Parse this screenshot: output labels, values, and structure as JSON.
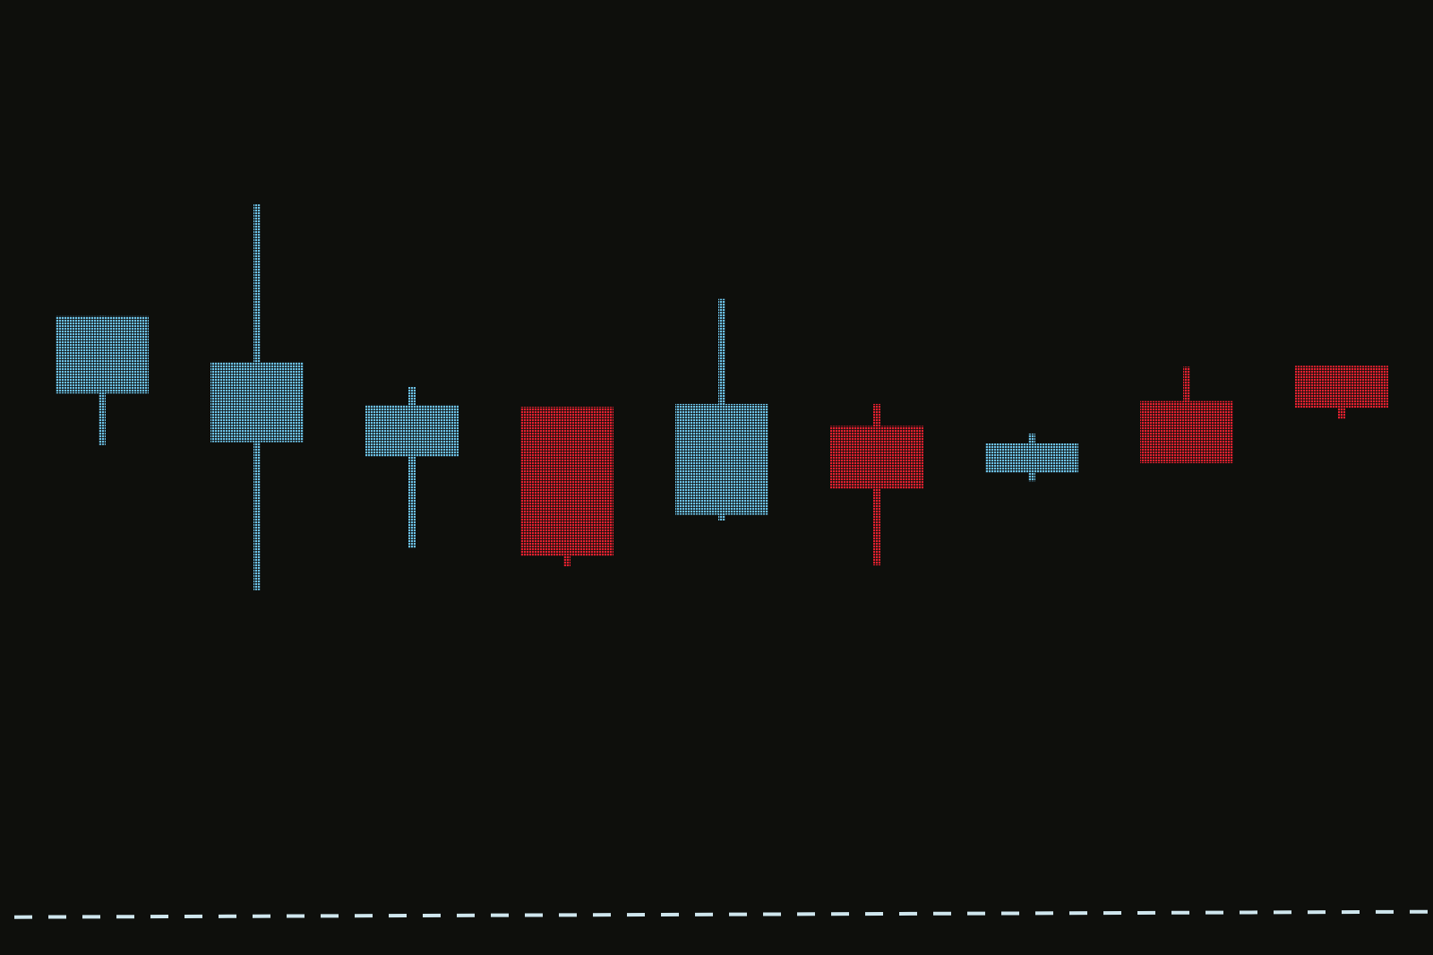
{
  "colors": {
    "background": "#0e0f0c",
    "up": "#6cc1e6",
    "down": "#e0202e",
    "baseline": "#cfe6ee"
  },
  "chart_data": {
    "type": "candlestick",
    "title": "",
    "xlabel": "",
    "ylabel": "",
    "grid": false,
    "legend": "none",
    "ylim": [
      0,
      100
    ],
    "candles": [
      {
        "open": 58.8,
        "high": 66.9,
        "low": 53.4,
        "close": 66.9,
        "direction": "up"
      },
      {
        "open": 53.7,
        "high": 78.6,
        "low": 38.2,
        "close": 62.1,
        "direction": "up"
      },
      {
        "open": 52.2,
        "high": 59.5,
        "low": 42.6,
        "close": 57.6,
        "direction": "up"
      },
      {
        "open": 57.4,
        "high": 57.4,
        "low": 40.7,
        "close": 41.8,
        "direction": "down"
      },
      {
        "open": 46.1,
        "high": 68.7,
        "low": 45.5,
        "close": 57.7,
        "direction": "up"
      },
      {
        "open": 55.4,
        "high": 57.7,
        "low": 40.8,
        "close": 48.8,
        "direction": "down"
      },
      {
        "open": 50.5,
        "high": 54.6,
        "low": 49.6,
        "close": 53.6,
        "direction": "up"
      },
      {
        "open": 58.0,
        "high": 61.6,
        "low": 51.5,
        "close": 51.5,
        "direction": "down"
      },
      {
        "open": 61.7,
        "high": 61.7,
        "low": 56.1,
        "close": 57.3,
        "direction": "down"
      }
    ],
    "baseline": {
      "value": 5,
      "style": "dashed"
    }
  }
}
